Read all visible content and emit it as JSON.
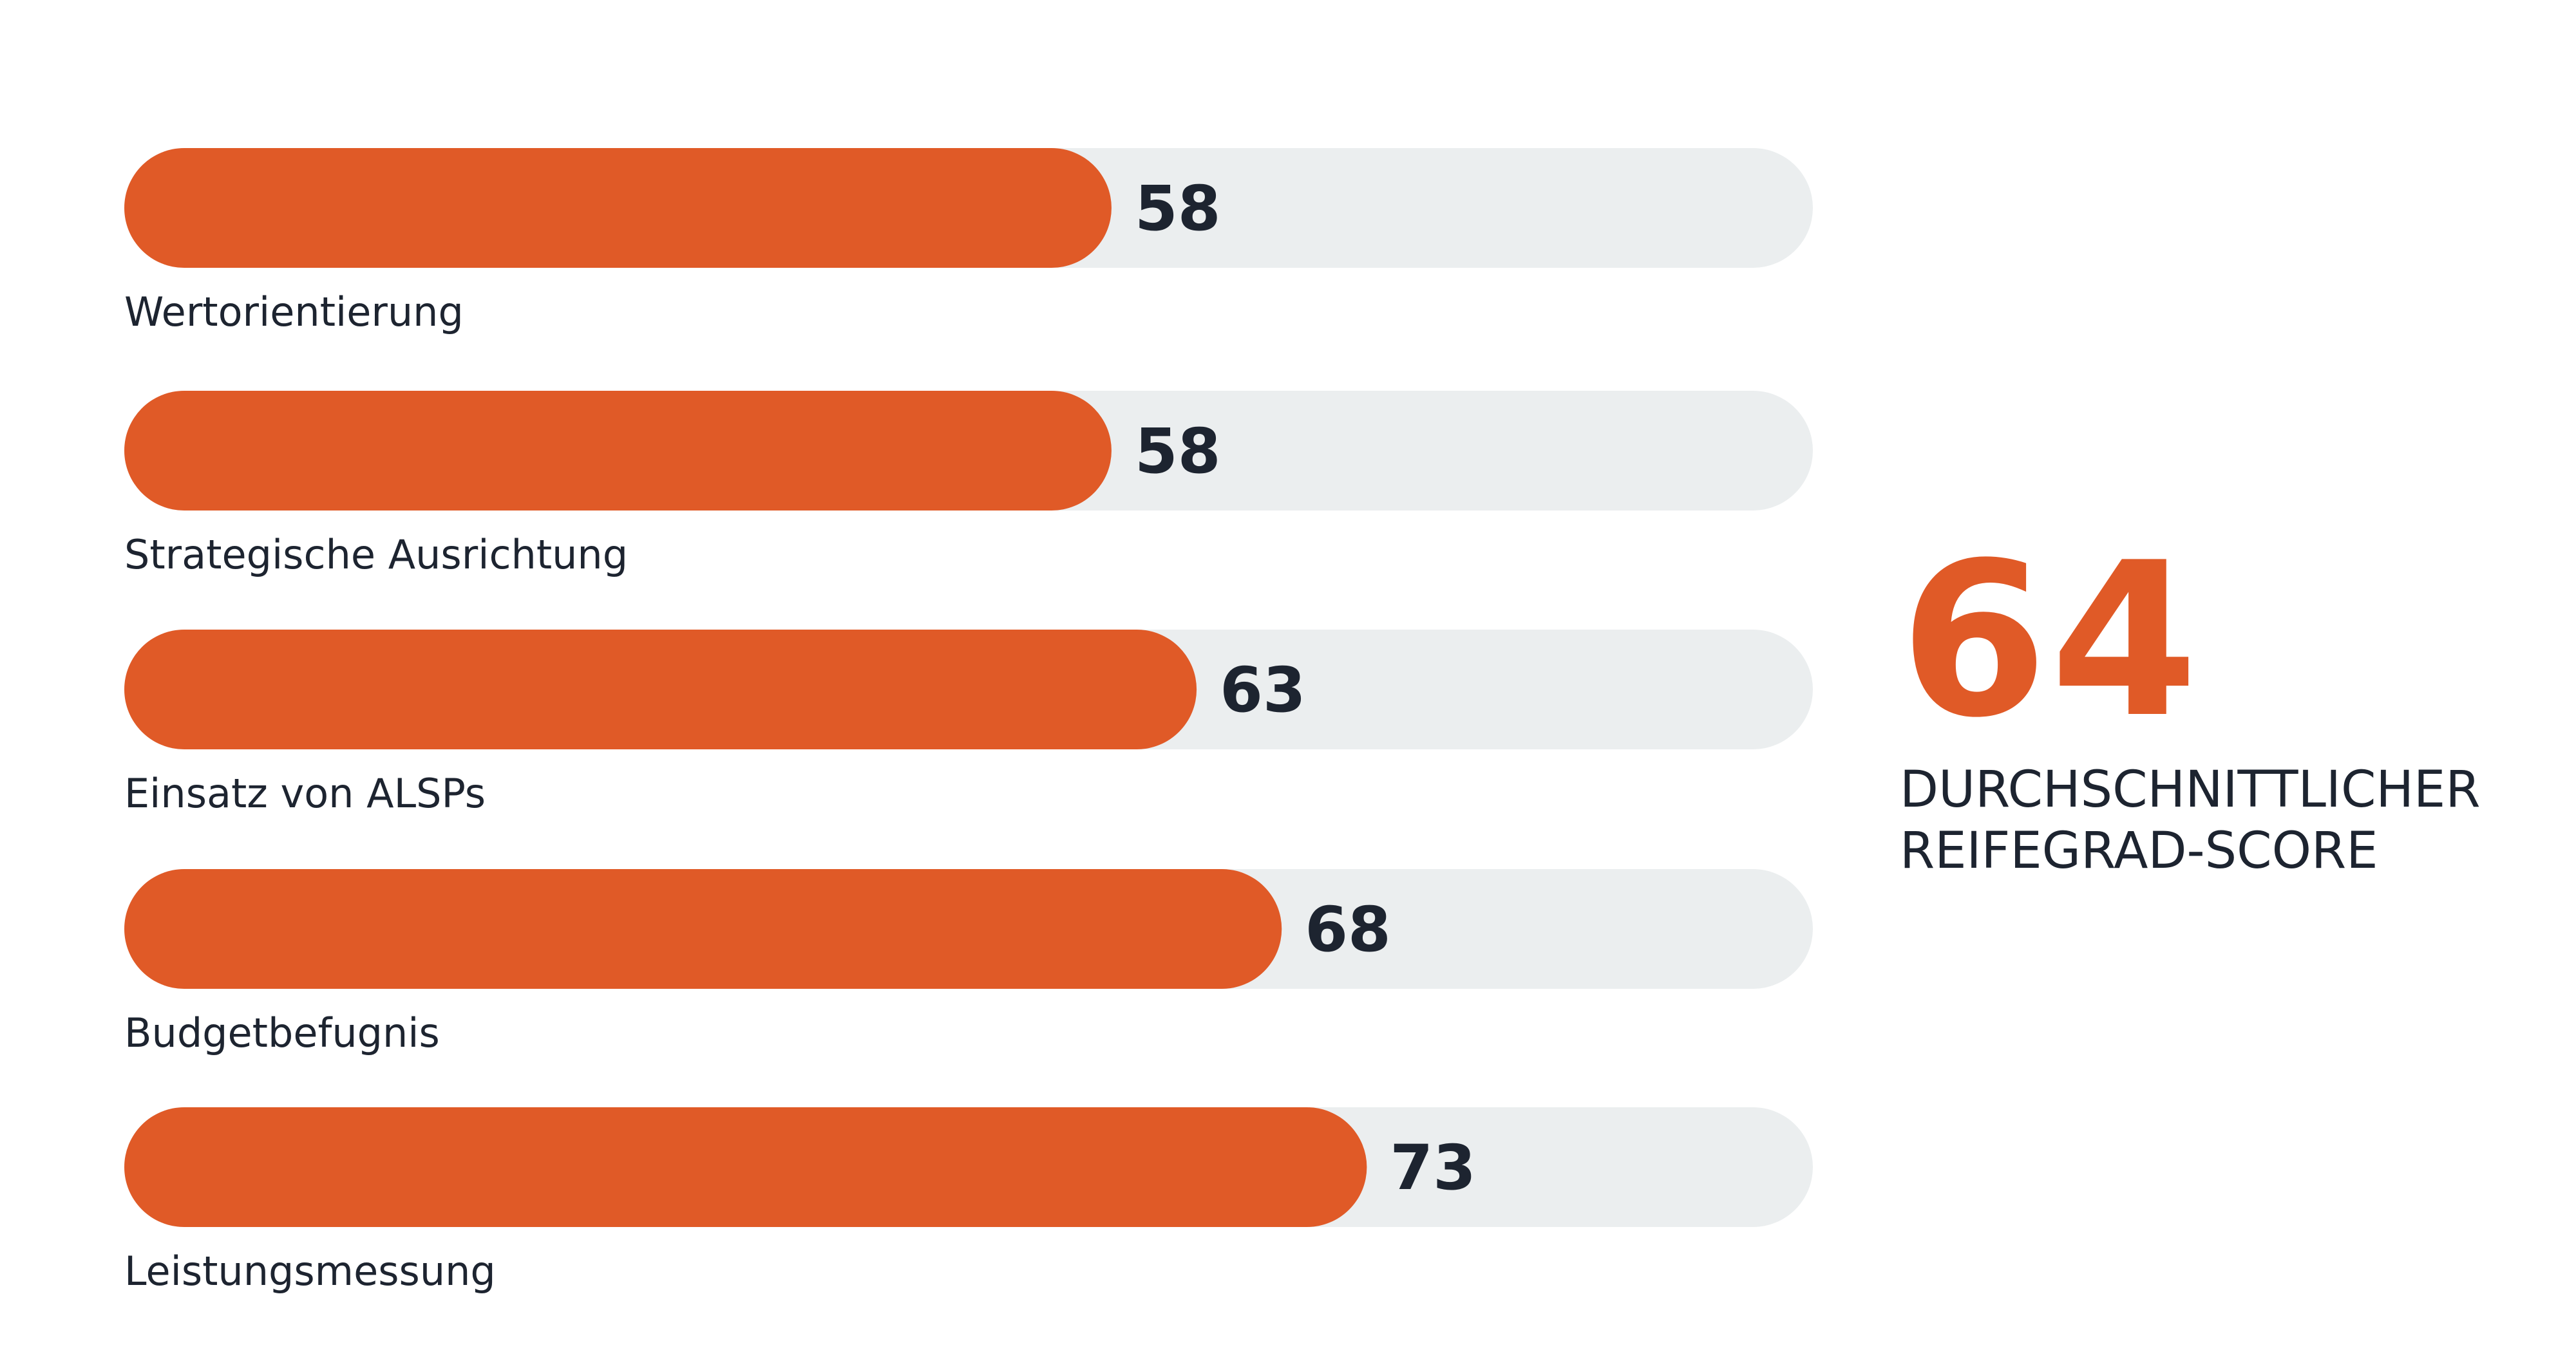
{
  "chart_data": {
    "type": "bar",
    "orientation": "horizontal",
    "categories": [
      "Wertorientierung",
      "Strategische Ausrichtung",
      "Einsatz von ALSPs",
      "Budgetbefugnis",
      "Leistungsmessung"
    ],
    "values": [
      58,
      58,
      63,
      68,
      73
    ],
    "value_labels": [
      "58",
      "58",
      "63",
      "68",
      "73"
    ],
    "xlim": [
      0,
      100
    ],
    "grid": false,
    "colors": {
      "bar": "#e05a27",
      "track": "#ebeeef",
      "text": "#1d2430"
    }
  },
  "kpi": {
    "value": "64",
    "caption_line1": "DURCHSCHNITTLICHER",
    "caption_line2": "REIFEGRAD-SCORE"
  }
}
